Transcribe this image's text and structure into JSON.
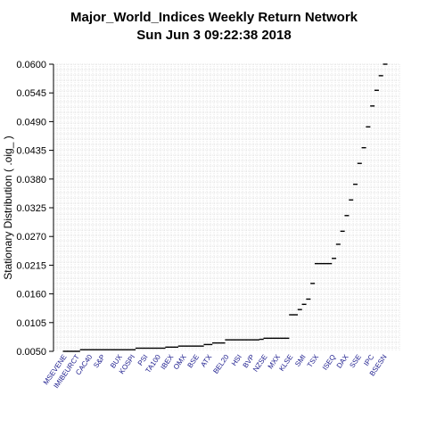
{
  "chart_data": {
    "type": "scatter",
    "title": "Major_World_Indices  Weekly Return Network",
    "subtitle": "Sun Jun  3 09:22:38 2018",
    "ylabel": "Stationary Distribution ( .oig_ )",
    "ylim": [
      0.005,
      0.06
    ],
    "yticks": [
      "0.0600",
      "0.0545",
      "0.0490",
      "0.0435",
      "0.0380",
      "0.0325",
      "0.0270",
      "0.0215",
      "0.0160",
      "0.0105",
      "0.0050"
    ],
    "grid": true,
    "values": [
      0.005,
      0.005,
      0.005,
      0.005,
      0.0053,
      0.0053,
      0.0053,
      0.0053,
      0.0053,
      0.0053,
      0.0053,
      0.0053,
      0.0053,
      0.0053,
      0.0053,
      0.0053,
      0.0053,
      0.0056,
      0.0056,
      0.0056,
      0.0056,
      0.0056,
      0.0056,
      0.0056,
      0.0058,
      0.0058,
      0.0058,
      0.006,
      0.006,
      0.006,
      0.006,
      0.006,
      0.006,
      0.0063,
      0.0063,
      0.0066,
      0.0066,
      0.0066,
      0.0072,
      0.0072,
      0.0072,
      0.0072,
      0.0072,
      0.0072,
      0.0072,
      0.0072,
      0.0073,
      0.0075,
      0.0075,
      0.0075,
      0.0075,
      0.0075,
      0.0075,
      0.012,
      0.012,
      0.013,
      0.014,
      0.015,
      0.018,
      0.0218,
      0.0218,
      0.0218,
      0.0218,
      0.0228,
      0.0255,
      0.028,
      0.031,
      0.034,
      0.037,
      0.041,
      0.044,
      0.048,
      0.052,
      0.055,
      0.0578,
      0.06
    ],
    "visible_labels": [
      "MSEVENE",
      "IMIBEURCT",
      "CAC40",
      "S&P",
      "BUX",
      "KOSPI",
      "PSI",
      "TA100",
      "IBEX",
      "OMX",
      "BSE",
      "ATX",
      "BEL20",
      "HSI",
      "BVP",
      "NZSE",
      "MXX",
      "KLSE",
      "SMI",
      "TSX",
      "ISEQ",
      "DAX",
      "SSE",
      "IPC",
      "BSESN"
    ]
  }
}
